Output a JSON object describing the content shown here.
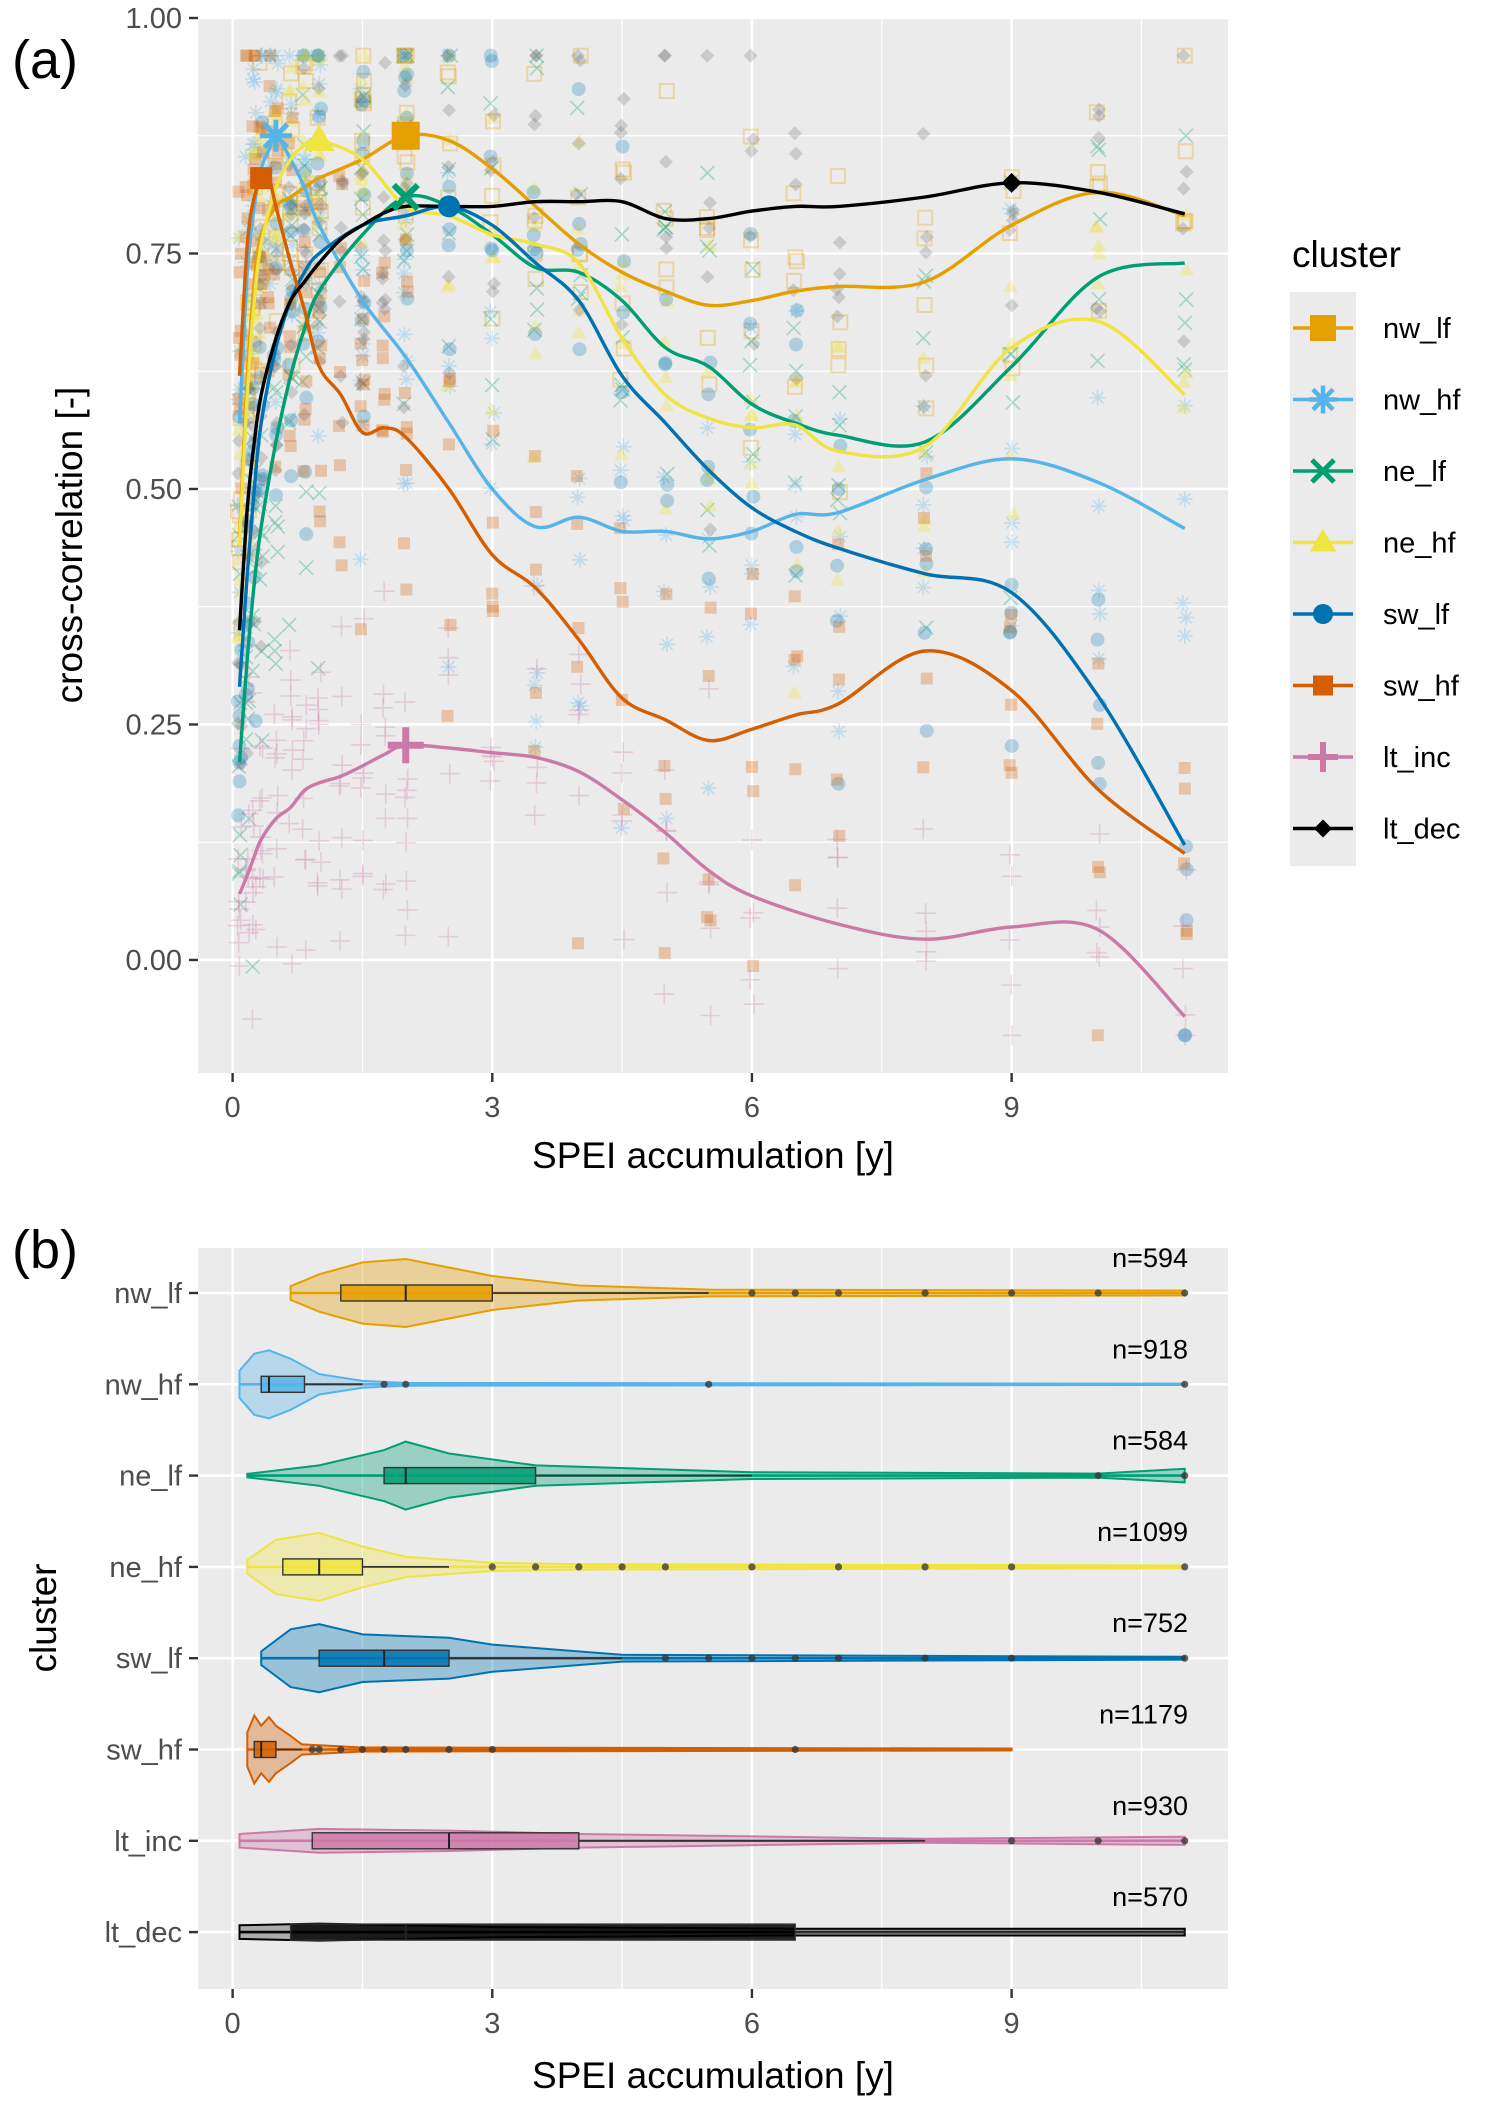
{
  "panel_a": {
    "letter": "(a)",
    "xlabel": "SPEI accumulation [y]",
    "ylabel": "cross-correlation [-]",
    "xticks": [
      "0",
      "3",
      "6",
      "9"
    ],
    "yticks": [
      "0.00",
      "0.25",
      "0.50",
      "0.75",
      "1.00"
    ],
    "legend_title": "cluster"
  },
  "panel_b": {
    "letter": "(b)",
    "xlabel": "SPEI accumulation [y]",
    "ylabel": "cluster",
    "xticks": [
      "0",
      "3",
      "6",
      "9"
    ]
  },
  "colors": {
    "nw_lf": "#E69F00",
    "nw_hf": "#56B4E9",
    "ne_lf": "#009E73",
    "ne_hf": "#F0E442",
    "sw_lf": "#0072B2",
    "sw_hf": "#D55E00",
    "lt_inc": "#CC79A7",
    "lt_dec": "#000000"
  },
  "chart_data": [
    {
      "type": "line",
      "xlabel": "SPEI accumulation [y]",
      "ylabel": "cross-correlation [-]",
      "xlim": [
        -0.4,
        11.5
      ],
      "ylim": [
        -0.12,
        1.0
      ],
      "grid": true,
      "legend_position": "right",
      "series": [
        {
          "name": "nw_lf",
          "shape": "square",
          "x": [
            0.08,
            0.17,
            0.25,
            0.33,
            0.5,
            0.67,
            0.83,
            1.0,
            1.5,
            2.0,
            2.5,
            3.0,
            3.5,
            4.0,
            4.5,
            5.0,
            5.5,
            6.0,
            6.5,
            7.0,
            8.0,
            9.0,
            10.0,
            11.0
          ],
          "y": [
            0.45,
            0.62,
            0.72,
            0.77,
            0.8,
            0.81,
            0.82,
            0.83,
            0.85,
            0.875,
            0.87,
            0.84,
            0.8,
            0.76,
            0.73,
            0.71,
            0.695,
            0.7,
            0.71,
            0.715,
            0.72,
            0.78,
            0.815,
            0.79
          ],
          "peak": [
            2.0,
            0.875
          ]
        },
        {
          "name": "nw_hf",
          "shape": "asterisk",
          "x": [
            0.08,
            0.17,
            0.25,
            0.33,
            0.42,
            0.5,
            0.67,
            0.83,
            1.0,
            1.5,
            2.0,
            2.5,
            3.0,
            3.5,
            4.0,
            4.5,
            5.0,
            5.5,
            6.0,
            6.5,
            7.0,
            8.0,
            9.0,
            10.0,
            11.0
          ],
          "y": [
            0.57,
            0.73,
            0.8,
            0.84,
            0.86,
            0.875,
            0.85,
            0.82,
            0.78,
            0.7,
            0.64,
            0.57,
            0.5,
            0.46,
            0.47,
            0.455,
            0.455,
            0.447,
            0.455,
            0.473,
            0.475,
            0.51,
            0.532,
            0.507,
            0.458
          ],
          "peak": [
            0.5,
            0.875
          ]
        },
        {
          "name": "ne_lf",
          "shape": "x",
          "x": [
            0.08,
            0.17,
            0.25,
            0.33,
            0.5,
            0.67,
            0.83,
            1.0,
            1.5,
            2.0,
            2.5,
            3.0,
            3.5,
            4.0,
            4.5,
            5.0,
            5.5,
            6.0,
            6.5,
            7.0,
            8.0,
            9.0,
            10.0,
            11.0
          ],
          "y": [
            0.21,
            0.32,
            0.4,
            0.46,
            0.55,
            0.62,
            0.67,
            0.71,
            0.77,
            0.81,
            0.8,
            0.77,
            0.735,
            0.73,
            0.7,
            0.65,
            0.63,
            0.59,
            0.57,
            0.557,
            0.55,
            0.63,
            0.725,
            0.74
          ],
          "peak": [
            2.0,
            0.81
          ]
        },
        {
          "name": "ne_hf",
          "shape": "triangle",
          "x": [
            0.08,
            0.17,
            0.25,
            0.33,
            0.5,
            0.67,
            0.83,
            1.0,
            1.5,
            2.0,
            2.5,
            3.0,
            3.5,
            4.0,
            4.5,
            5.0,
            5.5,
            6.0,
            6.5,
            7.0,
            8.0,
            9.0,
            10.0,
            11.0
          ],
          "y": [
            0.44,
            0.6,
            0.7,
            0.76,
            0.82,
            0.85,
            0.865,
            0.87,
            0.85,
            0.8,
            0.79,
            0.77,
            0.76,
            0.74,
            0.66,
            0.6,
            0.575,
            0.565,
            0.568,
            0.54,
            0.545,
            0.65,
            0.678,
            0.6
          ],
          "peak": [
            1.0,
            0.87
          ]
        },
        {
          "name": "sw_lf",
          "shape": "circle",
          "x": [
            0.08,
            0.17,
            0.25,
            0.33,
            0.5,
            0.67,
            0.83,
            1.0,
            1.5,
            2.0,
            2.5,
            3.0,
            3.5,
            4.0,
            4.5,
            5.0,
            5.5,
            6.0,
            6.5,
            7.0,
            8.0,
            9.0,
            10.0,
            11.0
          ],
          "y": [
            0.29,
            0.41,
            0.5,
            0.57,
            0.65,
            0.7,
            0.73,
            0.75,
            0.78,
            0.79,
            0.8,
            0.78,
            0.74,
            0.7,
            0.62,
            0.57,
            0.52,
            0.48,
            0.455,
            0.437,
            0.41,
            0.39,
            0.28,
            0.122
          ],
          "peak": [
            2.5,
            0.8
          ]
        },
        {
          "name": "sw_hf",
          "shape": "square",
          "x": [
            0.08,
            0.17,
            0.25,
            0.33,
            0.42,
            0.5,
            0.67,
            0.83,
            1.0,
            1.25,
            1.5,
            1.75,
            2.0,
            2.5,
            3.0,
            3.5,
            4.0,
            4.5,
            5.0,
            5.5,
            6.0,
            6.5,
            7.0,
            8.0,
            9.0,
            10.0,
            11.0
          ],
          "y": [
            0.62,
            0.76,
            0.81,
            0.83,
            0.83,
            0.8,
            0.74,
            0.69,
            0.63,
            0.6,
            0.56,
            0.565,
            0.555,
            0.5,
            0.43,
            0.395,
            0.34,
            0.278,
            0.255,
            0.233,
            0.245,
            0.26,
            0.272,
            0.328,
            0.286,
            0.181,
            0.113
          ],
          "peak": [
            0.33,
            0.83
          ]
        },
        {
          "name": "lt_inc",
          "shape": "plus",
          "x": [
            0.08,
            0.17,
            0.25,
            0.33,
            0.5,
            0.67,
            0.83,
            1.0,
            1.25,
            1.5,
            1.75,
            2.0,
            2.5,
            3.0,
            3.5,
            4.0,
            4.5,
            5.0,
            5.5,
            6.0,
            7.0,
            8.0,
            9.0,
            10.0,
            11.0
          ],
          "y": [
            0.07,
            0.09,
            0.11,
            0.128,
            0.15,
            0.162,
            0.18,
            0.188,
            0.195,
            0.206,
            0.218,
            0.228,
            0.225,
            0.22,
            0.215,
            0.2,
            0.17,
            0.135,
            0.095,
            0.068,
            0.038,
            0.022,
            0.035,
            0.032,
            -0.06
          ],
          "peak": [
            2.0,
            0.228
          ]
        },
        {
          "name": "lt_dec",
          "shape": "diamond",
          "x": [
            0.08,
            0.17,
            0.25,
            0.33,
            0.5,
            0.67,
            0.83,
            1.0,
            1.25,
            1.5,
            1.75,
            2.0,
            2.5,
            3.0,
            3.5,
            4.0,
            4.5,
            5.0,
            5.5,
            6.0,
            6.5,
            7.0,
            8.0,
            9.0,
            10.0,
            11.0
          ],
          "y": [
            0.35,
            0.48,
            0.55,
            0.6,
            0.66,
            0.7,
            0.72,
            0.74,
            0.765,
            0.78,
            0.793,
            0.8,
            0.8,
            0.8,
            0.805,
            0.805,
            0.805,
            0.787,
            0.787,
            0.795,
            0.8,
            0.8,
            0.81,
            0.825,
            0.815,
            0.792
          ],
          "peak": [
            9.0,
            0.825
          ]
        }
      ]
    },
    {
      "type": "violin",
      "xlabel": "SPEI accumulation [y]",
      "ylabel": "cluster",
      "xlim": [
        -0.4,
        11.5
      ],
      "categories": [
        "nw_lf",
        "nw_hf",
        "ne_lf",
        "ne_hf",
        "sw_lf",
        "sw_hf",
        "lt_inc",
        "lt_dec"
      ],
      "n_labels": [
        "n=594",
        "n=918",
        "n=584",
        "n=1099",
        "n=752",
        "n=1179",
        "n=930",
        "n=570"
      ],
      "series": [
        {
          "name": "nw_lf",
          "min": 0.67,
          "max": 11,
          "q1": 1.25,
          "median": 2.0,
          "q3": 3.0,
          "whisker_hi": 5.5,
          "outliers": [
            6,
            6.5,
            7,
            8,
            9,
            10,
            11
          ],
          "density": [
            [
              0.67,
              0.2
            ],
            [
              1.0,
              0.55
            ],
            [
              1.5,
              0.9
            ],
            [
              2.0,
              1.0
            ],
            [
              2.5,
              0.75
            ],
            [
              3.0,
              0.5
            ],
            [
              4.0,
              0.22
            ],
            [
              5.5,
              0.1
            ],
            [
              11,
              0.07
            ]
          ]
        },
        {
          "name": "nw_hf",
          "min": 0.08,
          "max": 11,
          "q1": 0.33,
          "median": 0.42,
          "q3": 0.83,
          "whisker_hi": 1.5,
          "outliers": [
            1.75,
            2.0,
            5.5,
            11
          ],
          "density": [
            [
              0.08,
              0.4
            ],
            [
              0.25,
              0.9
            ],
            [
              0.42,
              1.0
            ],
            [
              0.67,
              0.75
            ],
            [
              1.0,
              0.3
            ],
            [
              1.5,
              0.1
            ],
            [
              2.0,
              0.04
            ],
            [
              11,
              0.02
            ]
          ]
        },
        {
          "name": "ne_lf",
          "min": 0.17,
          "max": 11,
          "q1": 1.75,
          "median": 2.0,
          "q3": 3.5,
          "whisker_hi": 6.0,
          "outliers": [
            10,
            11
          ],
          "density": [
            [
              0.17,
              0.05
            ],
            [
              1.0,
              0.3
            ],
            [
              1.75,
              0.75
            ],
            [
              2.0,
              1.0
            ],
            [
              2.5,
              0.65
            ],
            [
              3.5,
              0.3
            ],
            [
              6.0,
              0.1
            ],
            [
              10,
              0.06
            ],
            [
              11,
              0.2
            ]
          ]
        },
        {
          "name": "ne_hf",
          "min": 0.17,
          "max": 11,
          "q1": 0.58,
          "median": 1.0,
          "q3": 1.5,
          "whisker_hi": 2.5,
          "outliers": [
            3.0,
            3.5,
            4.0,
            4.5,
            5.0,
            6.0,
            7.0,
            8.0,
            9.0,
            11
          ],
          "density": [
            [
              0.17,
              0.2
            ],
            [
              0.5,
              0.8
            ],
            [
              1.0,
              1.0
            ],
            [
              1.5,
              0.6
            ],
            [
              2.0,
              0.3
            ],
            [
              3.0,
              0.12
            ],
            [
              4.0,
              0.08
            ],
            [
              11,
              0.04
            ]
          ]
        },
        {
          "name": "sw_lf",
          "min": 0.33,
          "max": 11,
          "q1": 1.0,
          "median": 1.75,
          "q3": 2.5,
          "whisker_hi": 4.5,
          "outliers": [
            5,
            5.5,
            6,
            6.5,
            7,
            8,
            9,
            11
          ],
          "density": [
            [
              0.33,
              0.2
            ],
            [
              0.67,
              0.85
            ],
            [
              1.0,
              1.0
            ],
            [
              1.5,
              0.7
            ],
            [
              2.5,
              0.6
            ],
            [
              3.0,
              0.4
            ],
            [
              4.5,
              0.1
            ],
            [
              11,
              0.04
            ]
          ]
        },
        {
          "name": "sw_hf",
          "min": 0.17,
          "max": 9,
          "q1": 0.25,
          "median": 0.33,
          "q3": 0.5,
          "whisker_hi": 0.8,
          "outliers": [
            0.92,
            1.0,
            1.25,
            1.5,
            1.75,
            2.0,
            2.5,
            3.0,
            6.5
          ],
          "density": [
            [
              0.17,
              0.5
            ],
            [
              0.25,
              1.0
            ],
            [
              0.33,
              0.7
            ],
            [
              0.42,
              0.95
            ],
            [
              0.5,
              0.7
            ],
            [
              0.67,
              0.4
            ],
            [
              0.8,
              0.15
            ],
            [
              1.5,
              0.06
            ],
            [
              9,
              0.03
            ]
          ]
        },
        {
          "name": "lt_inc",
          "min": 0.08,
          "max": 11,
          "q1": 0.92,
          "median": 2.5,
          "q3": 4.0,
          "whisker_hi": 8.0,
          "outliers": [
            9,
            10,
            11
          ],
          "density": [
            [
              0.08,
              0.2
            ],
            [
              1.0,
              0.35
            ],
            [
              2.5,
              0.3
            ],
            [
              4.0,
              0.2
            ],
            [
              8.0,
              0.06
            ],
            [
              11,
              0.12
            ]
          ]
        },
        {
          "name": "lt_dec",
          "min": 0.08,
          "max": 11,
          "q1": 0.67,
          "median": 2.0,
          "q3": 6.5,
          "whisker_hi": 11,
          "outliers": [],
          "density": [
            [
              0.08,
              0.2
            ],
            [
              1.0,
              0.25
            ],
            [
              3.0,
              0.15
            ],
            [
              6.5,
              0.1
            ],
            [
              11,
              0.1
            ]
          ]
        }
      ]
    }
  ]
}
